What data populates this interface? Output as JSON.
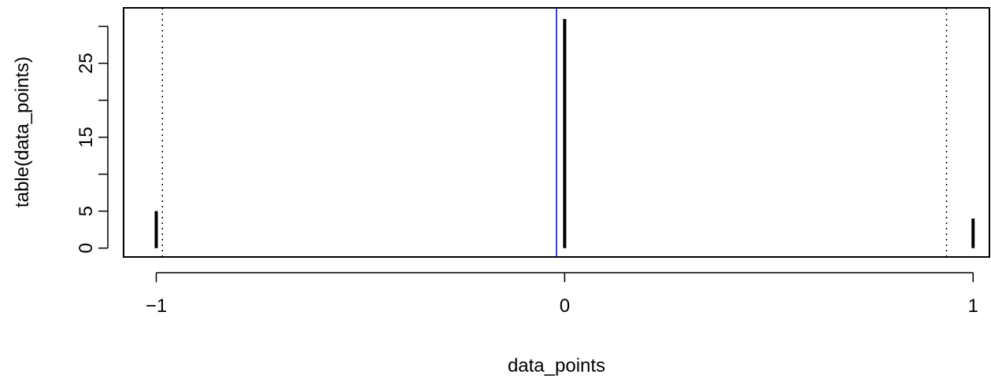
{
  "chart_data": {
    "type": "bar",
    "title": "",
    "xlabel": "data_points",
    "ylabel": "table(data_points)",
    "x": [
      -1,
      0,
      1
    ],
    "values": [
      5,
      31,
      4
    ],
    "xlim": [
      -1.08,
      1.04
    ],
    "ylim": [
      -1.2,
      32.5
    ],
    "x_ticks": [
      {
        "value": -1,
        "label": "−1"
      },
      {
        "value": 0,
        "label": "0"
      },
      {
        "value": 1,
        "label": "1"
      }
    ],
    "y_ticks_labeled": [
      {
        "value": 0,
        "label": "0"
      },
      {
        "value": 5,
        "label": "5"
      },
      {
        "value": 15,
        "label": "15"
      },
      {
        "value": 25,
        "label": "25"
      }
    ],
    "y_ticks_minor": [
      10,
      20,
      30
    ],
    "reference_lines": [
      {
        "name": "mean",
        "x": -0.02,
        "style": "solid",
        "color": "#0000cc"
      },
      {
        "name": "lower-bound",
        "x": -0.985,
        "style": "dotted",
        "color": "#000000"
      },
      {
        "name": "upper-bound",
        "x": 0.935,
        "style": "dotted",
        "color": "#000000"
      }
    ],
    "grid": false,
    "colors": {
      "bars": "#000000",
      "axis": "#000000"
    }
  }
}
